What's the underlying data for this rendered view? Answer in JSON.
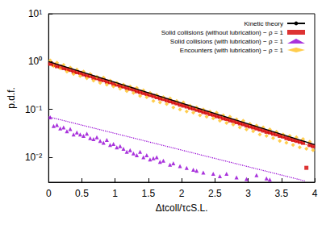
{
  "chart_data": {
    "type": "scatter",
    "x_label": "Δtcoll/τcS.L.",
    "y_label": "p.d.f.",
    "xlim": [
      0,
      4
    ],
    "xticks": [
      0,
      0.5,
      1,
      1.5,
      2,
      2.5,
      3,
      3.5,
      4
    ],
    "ylim": [
      0.003,
      10
    ],
    "yticks": [
      {
        "value": 0.01,
        "label": "10⁻²"
      },
      {
        "value": 0.1,
        "label": "10⁻¹"
      },
      {
        "value": 1,
        "label": "10⁰"
      },
      {
        "value": 10,
        "label": "10¹"
      }
    ],
    "log": "y",
    "grid": false,
    "legend": "top-right",
    "series": [
      {
        "name": "Kinetic theory",
        "type": "line",
        "color": "#000000",
        "line_style": "solid",
        "x": [
          0,
          4
        ],
        "values": [
          1,
          0.0183
        ]
      },
      {
        "name": "Solid collisions (without lubrication) − ρ = 1",
        "type": "scatter",
        "color": "#d40000",
        "marker": "square",
        "x": [
          0.025,
          0.075,
          0.125,
          0.175,
          0.225,
          0.275,
          0.325,
          0.375,
          0.425,
          0.475,
          0.525,
          0.575,
          0.625,
          0.675,
          0.725,
          0.775,
          0.825,
          0.875,
          0.925,
          0.975,
          1.025,
          1.075,
          1.125,
          1.175,
          1.225,
          1.275,
          1.325,
          1.375,
          1.425,
          1.475,
          1.525,
          1.575,
          1.625,
          1.675,
          1.725,
          1.775,
          1.825,
          1.875,
          1.925,
          1.975,
          2.025,
          2.075,
          2.125,
          2.175,
          2.225,
          2.275,
          2.325,
          2.375,
          2.425,
          2.475,
          2.525,
          2.575,
          2.625,
          2.675,
          2.725,
          2.775,
          2.825,
          2.875,
          2.925,
          2.975,
          3.025,
          3.075,
          3.125,
          3.175,
          3.225,
          3.275,
          3.325,
          3.375,
          3.425,
          3.475,
          3.525,
          3.575,
          3.625,
          3.675,
          3.725,
          3.775,
          3.825,
          3.875,
          3.925,
          3.975
        ],
        "values": [
          0.9,
          0.86,
          0.8,
          0.78,
          0.73,
          0.7,
          0.67,
          0.62,
          0.6,
          0.58,
          0.54,
          0.51,
          0.5,
          0.46,
          0.45,
          0.42,
          0.41,
          0.38,
          0.37,
          0.34,
          0.33,
          0.31,
          0.3,
          0.28,
          0.27,
          0.26,
          0.24,
          0.23,
          0.22,
          0.21,
          0.2,
          0.19,
          0.18,
          0.17,
          0.165,
          0.155,
          0.148,
          0.14,
          0.134,
          0.125,
          0.12,
          0.115,
          0.108,
          0.104,
          0.098,
          0.094,
          0.088,
          0.085,
          0.08,
          0.077,
          0.072,
          0.07,
          0.065,
          0.063,
          0.059,
          0.057,
          0.054,
          0.051,
          0.049,
          0.046,
          0.044,
          0.042,
          0.04,
          0.038,
          0.036,
          0.034,
          0.033,
          0.031,
          0.03,
          0.028,
          0.027,
          0.025,
          0.024,
          0.023,
          0.022,
          0.021,
          0.02,
          0.006,
          0.018,
          0.017
        ]
      },
      {
        "name": "Solid collisions (with lubrication) − ρ = 1",
        "type": "scatter",
        "color": "#9400d3",
        "marker": "triangle",
        "x": [
          0.025,
          0.075,
          0.125,
          0.175,
          0.225,
          0.275,
          0.325,
          0.375,
          0.425,
          0.475,
          0.525,
          0.575,
          0.625,
          0.675,
          0.725,
          0.775,
          0.825,
          0.875,
          0.925,
          0.975,
          1.025,
          1.075,
          1.125,
          1.175,
          1.225,
          1.275,
          1.325,
          1.375,
          1.425,
          1.475,
          1.525,
          1.575,
          1.625,
          1.675,
          1.725,
          1.825,
          1.875,
          1.975,
          2.075,
          2.175,
          2.225,
          2.325,
          2.475,
          2.575,
          2.675,
          2.825,
          2.975,
          3.125,
          3.275,
          3.325
        ],
        "values": [
          0.068,
          0.045,
          0.047,
          0.04,
          0.042,
          0.035,
          0.039,
          0.03,
          0.033,
          0.03,
          0.028,
          0.031,
          0.025,
          0.024,
          0.026,
          0.022,
          0.02,
          0.023,
          0.018,
          0.019,
          0.016,
          0.017,
          0.015,
          0.013,
          0.014,
          0.012,
          0.011,
          0.013,
          0.01,
          0.011,
          0.009,
          0.0095,
          0.01,
          0.008,
          0.0085,
          0.007,
          0.0075,
          0.0065,
          0.006,
          0.0055,
          0.0052,
          0.0048,
          0.0045,
          0.004,
          0.0045,
          0.0038,
          0.0035,
          0.0042,
          0.0036,
          0.0034
        ]
      },
      {
        "name": "Encounters (with lubrication) − ρ = 1",
        "type": "scatter",
        "color": "#ffc020",
        "marker": "diamond",
        "x": [
          0.025,
          0.075,
          0.125,
          0.175,
          0.225,
          0.275,
          0.325,
          0.375,
          0.425,
          0.475,
          0.525,
          0.575,
          0.625,
          0.675,
          0.725,
          0.775,
          0.825,
          0.875,
          0.925,
          0.975,
          1.025,
          1.075,
          1.125,
          1.175,
          1.225,
          1.275,
          1.325,
          1.375,
          1.425,
          1.475,
          1.525,
          1.575,
          1.625,
          1.675,
          1.725,
          1.775,
          1.825,
          1.875,
          1.925,
          1.975,
          2.025,
          2.075,
          2.125,
          2.175,
          2.225,
          2.275,
          2.325,
          2.375,
          2.425,
          2.475,
          2.525,
          2.575,
          2.625,
          2.675,
          2.725,
          2.775,
          2.825,
          2.875,
          2.925,
          2.975,
          3.025,
          3.075,
          3.125,
          3.175,
          3.225,
          3.275,
          3.325,
          3.375,
          3.425,
          3.475,
          3.525,
          3.575,
          3.625,
          3.675,
          3.725,
          3.775,
          3.825,
          3.875,
          3.925,
          3.975
        ],
        "values": [
          1.05,
          0.8,
          0.95,
          0.72,
          0.85,
          0.62,
          0.75,
          0.55,
          0.68,
          0.5,
          0.62,
          0.45,
          0.55,
          0.4,
          0.48,
          0.36,
          0.46,
          0.33,
          0.4,
          0.3,
          0.36,
          0.27,
          0.33,
          0.24,
          0.3,
          0.22,
          0.28,
          0.19,
          0.25,
          0.18,
          0.22,
          0.15,
          0.2,
          0.14,
          0.18,
          0.13,
          0.17,
          0.11,
          0.15,
          0.1,
          0.14,
          0.09,
          0.12,
          0.085,
          0.11,
          0.075,
          0.1,
          0.07,
          0.09,
          0.065,
          0.085,
          0.058,
          0.075,
          0.052,
          0.07,
          0.048,
          0.062,
          0.042,
          0.058,
          0.038,
          0.05,
          0.035,
          0.046,
          0.03,
          0.042,
          0.028,
          0.038,
          0.025,
          0.034,
          0.022,
          0.03,
          0.02,
          0.028,
          0.018,
          0.026,
          0.016,
          0.024,
          0.015,
          0.021,
          0.014
        ]
      },
      {
        "type": "line",
        "color": "#d40000",
        "line_style": "dotted",
        "x": [
          0,
          4
        ],
        "values": [
          0.88,
          0.0161
        ]
      },
      {
        "type": "line",
        "color": "#9400d3",
        "line_style": "dotted",
        "x": [
          0,
          3.85
        ],
        "values": [
          0.07,
          0.0032
        ]
      }
    ]
  }
}
